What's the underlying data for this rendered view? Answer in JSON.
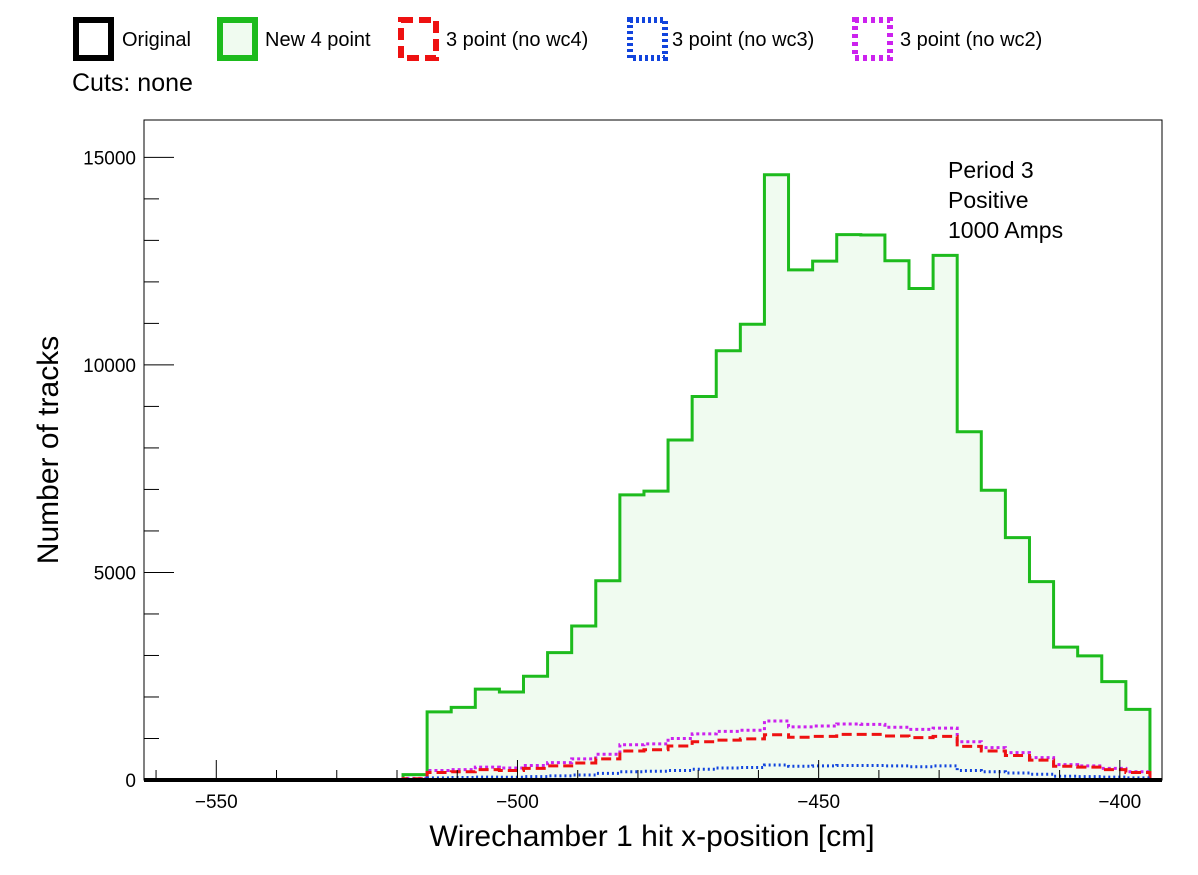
{
  "chart_data": {
    "type": "histogram",
    "xlabel": "Wirechamber 1 hit x-position [cm]",
    "ylabel": "Number of tracks",
    "xlim": [
      -562,
      -393
    ],
    "ylim": [
      0,
      15900
    ],
    "x_ticks": [
      -550,
      -500,
      -450,
      -400
    ],
    "x_tick_labels": [
      "−550",
      "−500",
      "−450",
      "−400"
    ],
    "y_ticks": [
      0,
      5000,
      10000,
      15000
    ],
    "y_tick_labels": [
      "0",
      "5000",
      "10000",
      "15000"
    ],
    "bin_width": 4,
    "bin_edges_start": -519,
    "grid": false,
    "legend_position": "top",
    "legend": [
      {
        "label": "Original",
        "color": "#000000",
        "style": "solid",
        "fill": "none"
      },
      {
        "label": "New 4 point",
        "color": "#1dbb1d",
        "style": "solid",
        "fill": "#f0fbf0"
      },
      {
        "label": "3 point (no wc4)",
        "color": "#ee1111",
        "style": "dashed",
        "fill": "none"
      },
      {
        "label": "3 point (no wc3)",
        "color": "#1144dd",
        "style": "dotted",
        "fill": "none"
      },
      {
        "label": "3 point (no wc2)",
        "color": "#cc22ee",
        "style": "dotted",
        "fill": "none"
      }
    ],
    "cuts_text": "Cuts: none",
    "annotation": [
      "Period 3",
      "Positive",
      "1000 Amps"
    ],
    "series": [
      {
        "name": "Original",
        "color": "#000000",
        "dash": "",
        "width": 4,
        "fill": "none",
        "values": [
          0,
          0,
          0,
          0,
          0,
          0,
          0,
          0,
          0,
          0,
          0,
          0,
          0,
          0,
          0,
          0,
          0,
          0,
          0,
          0,
          0,
          0,
          0,
          0,
          0,
          0,
          0,
          0,
          0,
          0,
          0
        ]
      },
      {
        "name": "New 4 point",
        "color": "#1dbb1d",
        "dash": "",
        "width": 3,
        "fill": "#f0fbf0",
        "values": [
          130,
          1640,
          1750,
          2190,
          2120,
          2500,
          3070,
          3710,
          4800,
          6870,
          6960,
          8190,
          9240,
          10340,
          10980,
          14580,
          12290,
          12500,
          13140,
          13130,
          12510,
          11840,
          12640,
          8390,
          6980,
          5840,
          4780,
          3200,
          2990,
          2370,
          1700
        ]
      },
      {
        "name": "3 point (no wc4)",
        "color": "#ee1111",
        "dash": "10,5",
        "width": 3,
        "fill": "none",
        "values": [
          30,
          180,
          200,
          250,
          230,
          280,
          340,
          410,
          510,
          700,
          730,
          820,
          920,
          960,
          990,
          1090,
          1030,
          1050,
          1100,
          1100,
          1060,
          1020,
          1050,
          810,
          700,
          590,
          480,
          330,
          310,
          250,
          180
        ]
      },
      {
        "name": "3 point (no wc3)",
        "color": "#1144dd",
        "dash": "2,3",
        "width": 3,
        "fill": "none",
        "values": [
          10,
          50,
          60,
          70,
          65,
          80,
          100,
          120,
          160,
          200,
          210,
          230,
          260,
          290,
          300,
          360,
          330,
          340,
          350,
          350,
          340,
          320,
          340,
          230,
          200,
          170,
          140,
          90,
          80,
          70,
          50
        ]
      },
      {
        "name": "3 point (no wc2)",
        "color": "#cc22ee",
        "dash": "3,3",
        "width": 3,
        "fill": "none",
        "values": [
          40,
          230,
          250,
          310,
          290,
          350,
          420,
          510,
          620,
          850,
          870,
          1000,
          1110,
          1170,
          1200,
          1420,
          1280,
          1300,
          1350,
          1340,
          1270,
          1220,
          1250,
          920,
          780,
          660,
          540,
          370,
          340,
          280,
          200
        ]
      }
    ]
  }
}
